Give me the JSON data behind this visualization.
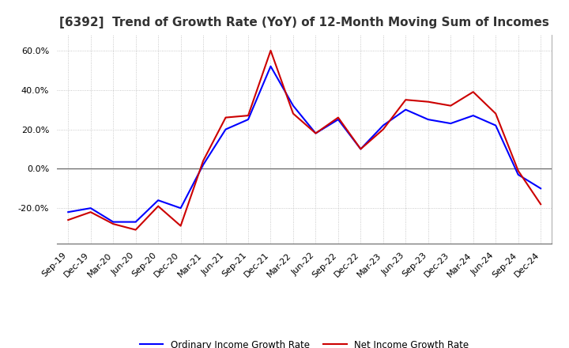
{
  "title": "[6392]  Trend of Growth Rate (YoY) of 12-Month Moving Sum of Incomes",
  "x_labels": [
    "Sep-19",
    "Dec-19",
    "Mar-20",
    "Jun-20",
    "Sep-20",
    "Dec-20",
    "Mar-21",
    "Jun-21",
    "Sep-21",
    "Dec-21",
    "Mar-22",
    "Jun-22",
    "Sep-22",
    "Dec-22",
    "Mar-23",
    "Jun-23",
    "Sep-23",
    "Dec-23",
    "Mar-24",
    "Jun-24",
    "Sep-24",
    "Dec-24"
  ],
  "ordinary_income": [
    -22,
    -20,
    -27,
    -27,
    -16,
    -20,
    2,
    20,
    25,
    52,
    32,
    18,
    25,
    10,
    22,
    30,
    25,
    23,
    27,
    22,
    -3,
    -10
  ],
  "net_income": [
    -26,
    -22,
    -28,
    -31,
    -19,
    -29,
    4,
    26,
    27,
    60,
    28,
    18,
    26,
    10,
    20,
    35,
    34,
    32,
    39,
    28,
    -1,
    -18
  ],
  "ordinary_color": "#0000FF",
  "net_color": "#CC0000",
  "ylim_min": -38,
  "ylim_max": 68,
  "yticks": [
    -20,
    0,
    20,
    40,
    60
  ],
  "grid_color": "#BBBBBB",
  "legend_ordinary": "Ordinary Income Growth Rate",
  "legend_net": "Net Income Growth Rate",
  "title_fontsize": 11,
  "axis_fontsize": 8,
  "line_width": 1.5
}
